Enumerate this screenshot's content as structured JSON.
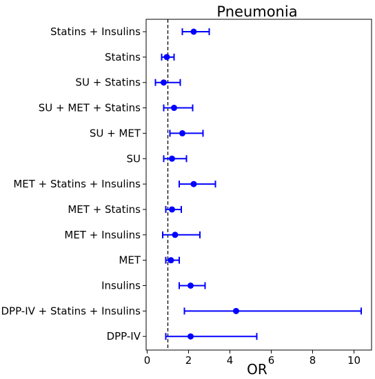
{
  "chart_data": {
    "type": "scatter",
    "title": "Pneumonia",
    "xlabel": "OR",
    "ylabel": "",
    "xlim": [
      -0.05,
      10.85
    ],
    "xticks": [
      0,
      2,
      4,
      6,
      8,
      10
    ],
    "xtick_labels": [
      "0",
      "2",
      "4",
      "6",
      "8",
      "10"
    ],
    "reference_line": 1,
    "marker_color": "#0000ff",
    "grid": false,
    "categories": [
      "Statins + Insulins",
      "Statins",
      "SU + Statins",
      "SU + MET + Statins",
      "SU + MET",
      "SU",
      "MET + Statins + Insulins",
      "MET + Statins",
      "MET + Insulins",
      "MET",
      "Insulins",
      "DPP-IV + Statins + Insulins",
      "DPP-IV"
    ],
    "series": [
      {
        "or": [
          2.25,
          0.95,
          0.8,
          1.3,
          1.7,
          1.2,
          2.25,
          1.2,
          1.35,
          1.15,
          2.1,
          4.3,
          2.1
        ],
        "ci_low": [
          1.7,
          0.7,
          0.4,
          0.8,
          1.1,
          0.8,
          1.55,
          0.9,
          0.75,
          0.9,
          1.55,
          1.8,
          0.9
        ],
        "ci_high": [
          3.0,
          1.3,
          1.6,
          2.2,
          2.7,
          1.9,
          3.3,
          1.65,
          2.55,
          1.55,
          2.8,
          10.35,
          5.3
        ]
      }
    ]
  }
}
